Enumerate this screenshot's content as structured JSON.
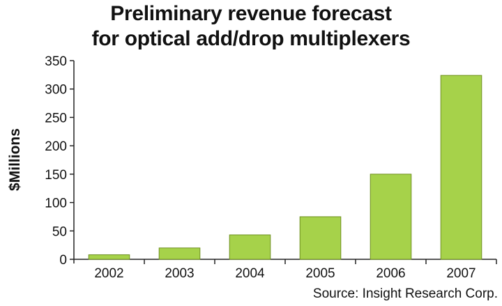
{
  "chart_data": {
    "type": "bar",
    "title": "Preliminary revenue forecast",
    "subtitle": "for optical add/drop multiplexers",
    "ylabel": "$Millions",
    "xlabel": "",
    "categories": [
      "2002",
      "2003",
      "2004",
      "2005",
      "2006",
      "2007"
    ],
    "values": [
      8,
      20,
      43,
      75,
      150,
      324
    ],
    "ylim": [
      0,
      350
    ],
    "yticks": [
      0,
      50,
      100,
      150,
      200,
      250,
      300,
      350
    ],
    "grid": false,
    "bar_color": "#a6d24a",
    "bar_edge_color": "#6e8f1f",
    "source": "Source: Insight Research Corp."
  }
}
